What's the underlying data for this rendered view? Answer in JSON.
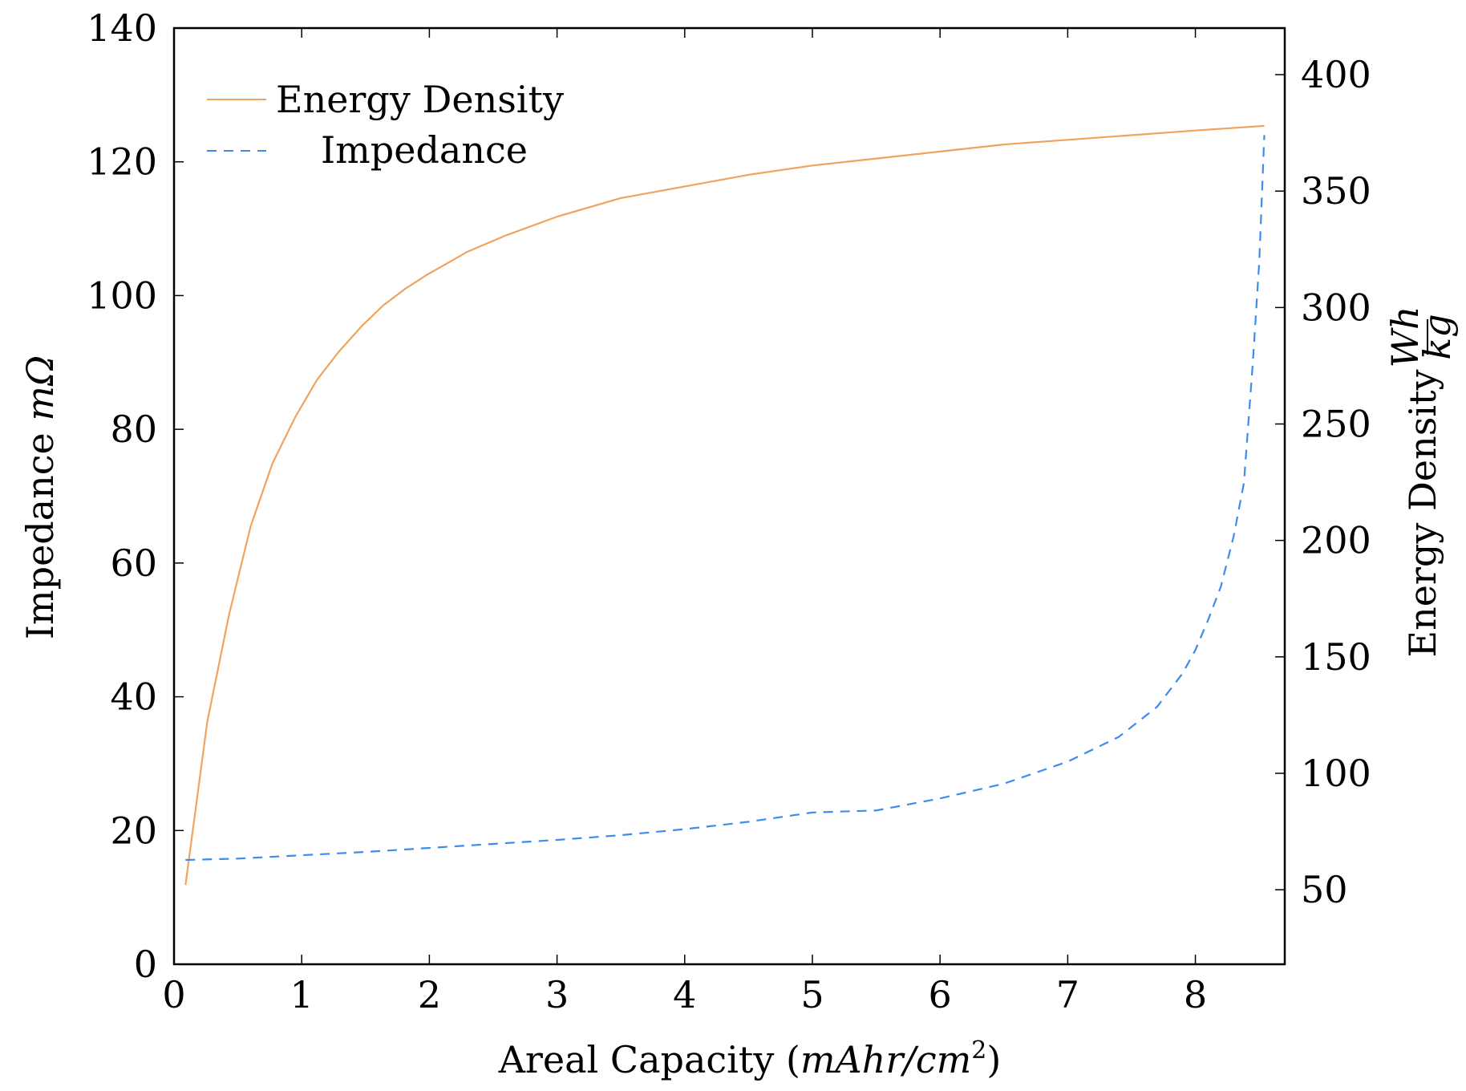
{
  "chart_data": {
    "type": "line",
    "title": "",
    "xlabel": "Areal Capacity (mAhr/cm2)",
    "xlabel_parts": {
      "prefix": "Areal Capacity (",
      "var": "mAhr/cm",
      "sup": "2",
      "suffix": ")"
    },
    "ylabel_left": "Impedance mΩ",
    "ylabel_left_parts": {
      "text": "Impedance ",
      "var": "mΩ"
    },
    "ylabel_right": "Energy Density Wh/kg",
    "ylabel_right_parts": {
      "text": "Energy Density ",
      "num": "Wh",
      "den": "kg"
    },
    "xlim": [
      0,
      8.7
    ],
    "ylim_left": [
      0,
      140
    ],
    "ylim_right": [
      18,
      420
    ],
    "x_ticks": [
      0,
      1,
      2,
      3,
      4,
      5,
      6,
      7,
      8
    ],
    "y_left_ticks": [
      0,
      20,
      40,
      60,
      80,
      100,
      120,
      140
    ],
    "y_right_ticks": [
      50,
      100,
      150,
      200,
      250,
      300,
      350,
      400
    ],
    "grid": false,
    "legend_position": "top-left",
    "colors": {
      "energy": "#f0a35e",
      "impedance": "#3b8ced",
      "axis": "#000000"
    },
    "series": [
      {
        "name": "Energy Density",
        "axis": "right",
        "style": "solid",
        "x": [
          0.09,
          0.26,
          0.43,
          0.6,
          0.77,
          0.95,
          1.12,
          1.29,
          1.47,
          1.64,
          1.81,
          1.98,
          2.3,
          2.6,
          3.0,
          3.5,
          4.0,
          4.5,
          5.0,
          5.5,
          6.0,
          6.5,
          7.0,
          7.5,
          8.0,
          8.54
        ],
        "y": [
          52,
          122,
          168,
          206,
          233,
          253,
          269,
          281,
          292,
          301,
          308,
          314,
          324,
          331,
          339,
          347,
          352,
          357,
          361,
          364,
          367,
          370,
          372,
          374,
          376,
          378
        ]
      },
      {
        "name": "Impedance",
        "axis": "left",
        "style": "dashed",
        "x": [
          0.09,
          0.5,
          1.0,
          1.5,
          2.0,
          2.5,
          3.0,
          3.5,
          4.0,
          4.5,
          5.0,
          5.5,
          6.0,
          6.5,
          7.0,
          7.4,
          7.7,
          7.9,
          8.0,
          8.1,
          8.2,
          8.3,
          8.38,
          8.45,
          8.5,
          8.54
        ],
        "y": [
          15.6,
          15.8,
          16.3,
          16.8,
          17.4,
          18.0,
          18.6,
          19.3,
          20.2,
          21.3,
          22.7,
          23.0,
          24.8,
          27.0,
          30.3,
          34.0,
          38.5,
          43.5,
          47.0,
          51.5,
          56.5,
          64.0,
          72.0,
          90.0,
          105.0,
          124.0
        ]
      }
    ]
  }
}
